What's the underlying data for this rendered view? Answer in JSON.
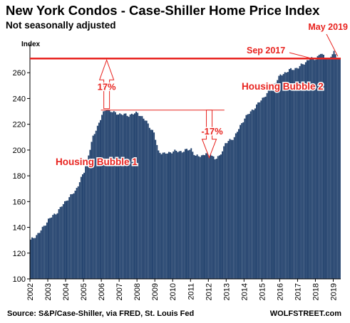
{
  "chart_data": {
    "type": "bar",
    "title": "New York Condos - Case-Shiller Home Price Index",
    "subtitle": "Not seasonally adjusted",
    "ylabel": "Index",
    "xlabel": "",
    "ylim": [
      100,
      280
    ],
    "yticks": [
      100,
      120,
      140,
      160,
      180,
      200,
      220,
      240,
      260
    ],
    "xticks": [
      "2002",
      "2003",
      "2004",
      "2005",
      "2006",
      "2007",
      "2008",
      "2009",
      "2010",
      "2011",
      "2012",
      "2013",
      "2014",
      "2015",
      "2016",
      "2017",
      "2018",
      "2019"
    ],
    "x_range": [
      2002.0,
      2019.42
    ],
    "series": [
      {
        "frequency": "monthly",
        "start": "2002-01",
        "end": "2019-05",
        "color": "#1f3f6b",
        "keypoints": [
          [
            "2002-01",
            130
          ],
          [
            "2002-07",
            136
          ],
          [
            "2003-01",
            146
          ],
          [
            "2003-07",
            152
          ],
          [
            "2004-01",
            161
          ],
          [
            "2004-07",
            168
          ],
          [
            "2005-01",
            183
          ],
          [
            "2005-07",
            210
          ],
          [
            "2006-01",
            227
          ],
          [
            "2006-04",
            232
          ],
          [
            "2006-09",
            229
          ],
          [
            "2007-01",
            228
          ],
          [
            "2007-07",
            227
          ],
          [
            "2008-01",
            229
          ],
          [
            "2008-07",
            222
          ],
          [
            "2008-12",
            213
          ],
          [
            "2009-03",
            199
          ],
          [
            "2009-07",
            197
          ],
          [
            "2010-01",
            199
          ],
          [
            "2010-07",
            199
          ],
          [
            "2011-01",
            201
          ],
          [
            "2011-04",
            195
          ],
          [
            "2011-09",
            196
          ],
          [
            "2012-01",
            199
          ],
          [
            "2012-05",
            193
          ],
          [
            "2012-08",
            195
          ],
          [
            "2012-12",
            205
          ],
          [
            "2013-06",
            210
          ],
          [
            "2014-01",
            225
          ],
          [
            "2014-07",
            232
          ],
          [
            "2015-01",
            240
          ],
          [
            "2015-07",
            248
          ],
          [
            "2016-01",
            258
          ],
          [
            "2016-07",
            262
          ],
          [
            "2017-01",
            264
          ],
          [
            "2017-09",
            271
          ],
          [
            "2018-01",
            271
          ],
          [
            "2018-04",
            275
          ],
          [
            "2018-07",
            272
          ],
          [
            "2018-10",
            271
          ],
          [
            "2019-01",
            276
          ],
          [
            "2019-05",
            270
          ]
        ]
      }
    ],
    "reference_line": {
      "value": 271,
      "color": "#e8231f"
    },
    "annotations": [
      {
        "text": "Sep 2017",
        "color": "#e8231f"
      },
      {
        "text": "May 2019",
        "color": "#e8231f"
      },
      {
        "text": "17%",
        "color": "#e8231f"
      },
      {
        "text": "-17%",
        "color": "#e8231f"
      },
      {
        "text": "Housing Bubble 1",
        "color": "#e8231f"
      },
      {
        "text": "Housing Bubble 2",
        "color": "#e8231f"
      }
    ],
    "grid": false
  },
  "footer": {
    "source": "Source: S&P/Case-Shiller, via FRED,  St. Louis Fed",
    "brand": "WOLFSTREET.com"
  }
}
